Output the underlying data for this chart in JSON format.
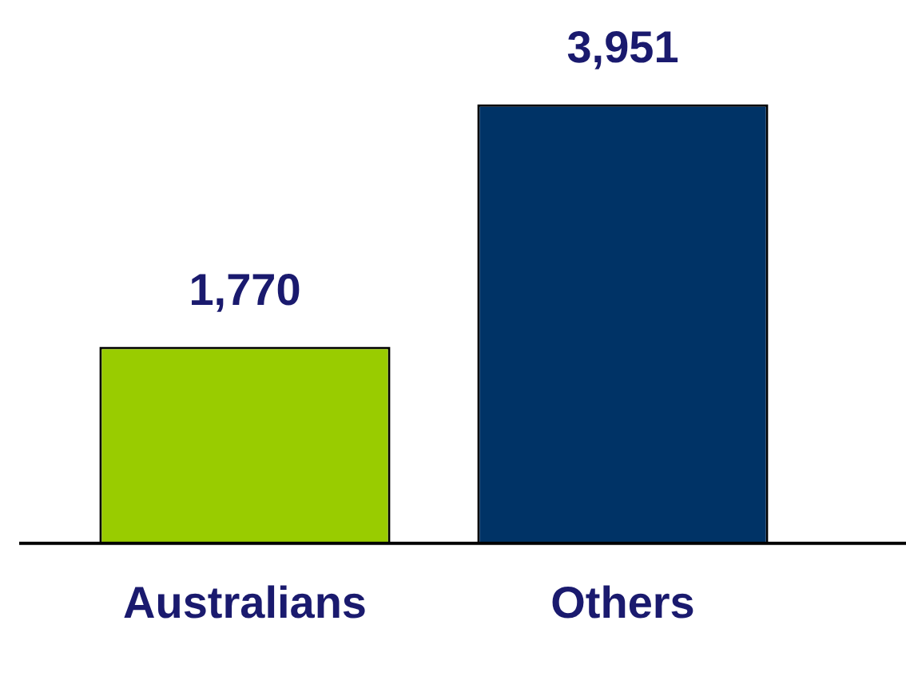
{
  "chart_data": {
    "type": "bar",
    "categories": [
      "Australians",
      "Others"
    ],
    "values": [
      1770,
      3951
    ],
    "value_labels": [
      "1,770",
      "3,951"
    ],
    "colors": [
      "#99cc00",
      "#003366"
    ]
  }
}
